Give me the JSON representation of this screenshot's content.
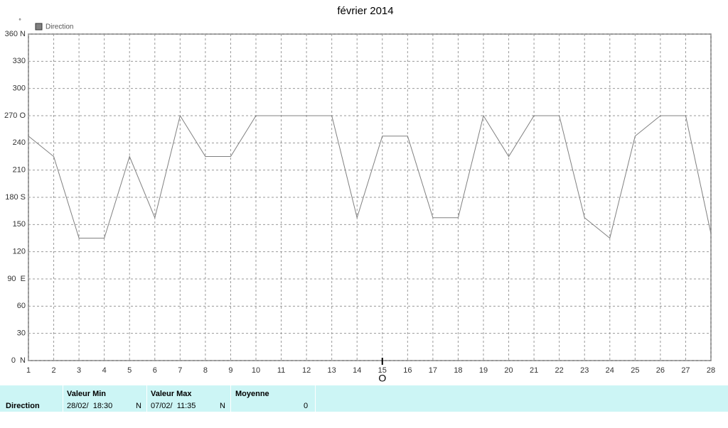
{
  "chart_data": {
    "type": "line",
    "title": "février 2014",
    "y_unit": "°",
    "x": [
      1,
      2,
      3,
      4,
      5,
      6,
      7,
      8,
      9,
      10,
      11,
      12,
      13,
      14,
      15,
      16,
      17,
      18,
      19,
      20,
      21,
      22,
      23,
      24,
      25,
      26,
      27,
      28
    ],
    "series": [
      {
        "name": "Direction",
        "color": "#808080",
        "values": [
          247.5,
          225,
          135,
          135,
          225,
          157.5,
          270,
          225,
          225,
          270,
          270,
          270,
          270,
          157.5,
          247.5,
          247.5,
          157.5,
          157.5,
          270,
          225,
          270,
          270,
          157.5,
          135,
          247.5,
          270,
          270,
          140
        ]
      }
    ],
    "xlim": [
      1,
      28
    ],
    "ylim": [
      0,
      360
    ],
    "xticks": [
      1,
      2,
      3,
      4,
      5,
      6,
      7,
      8,
      9,
      10,
      11,
      12,
      13,
      14,
      15,
      16,
      17,
      18,
      19,
      20,
      21,
      22,
      23,
      24,
      25,
      26,
      27,
      28
    ],
    "yticks": [
      {
        "value": 0,
        "label": "0  N"
      },
      30,
      60,
      {
        "value": 90,
        "label": "90  E"
      },
      120,
      150,
      {
        "value": 180,
        "label": "180 S"
      },
      210,
      240,
      {
        "value": 270,
        "label": "270 O"
      },
      300,
      330,
      {
        "value": 360,
        "label": "360 N"
      }
    ],
    "grid": true,
    "annotation": {
      "x": 15,
      "text": "O"
    }
  },
  "table": {
    "headers": [
      "Valeur Min",
      "Valeur Max",
      "Moyenne"
    ],
    "row_label": "Direction",
    "cells": [
      {
        "time": "28/02/  18:30",
        "value": "N"
      },
      {
        "time": "07/02/  11:35",
        "value": "N"
      },
      {
        "value": "0"
      }
    ]
  }
}
